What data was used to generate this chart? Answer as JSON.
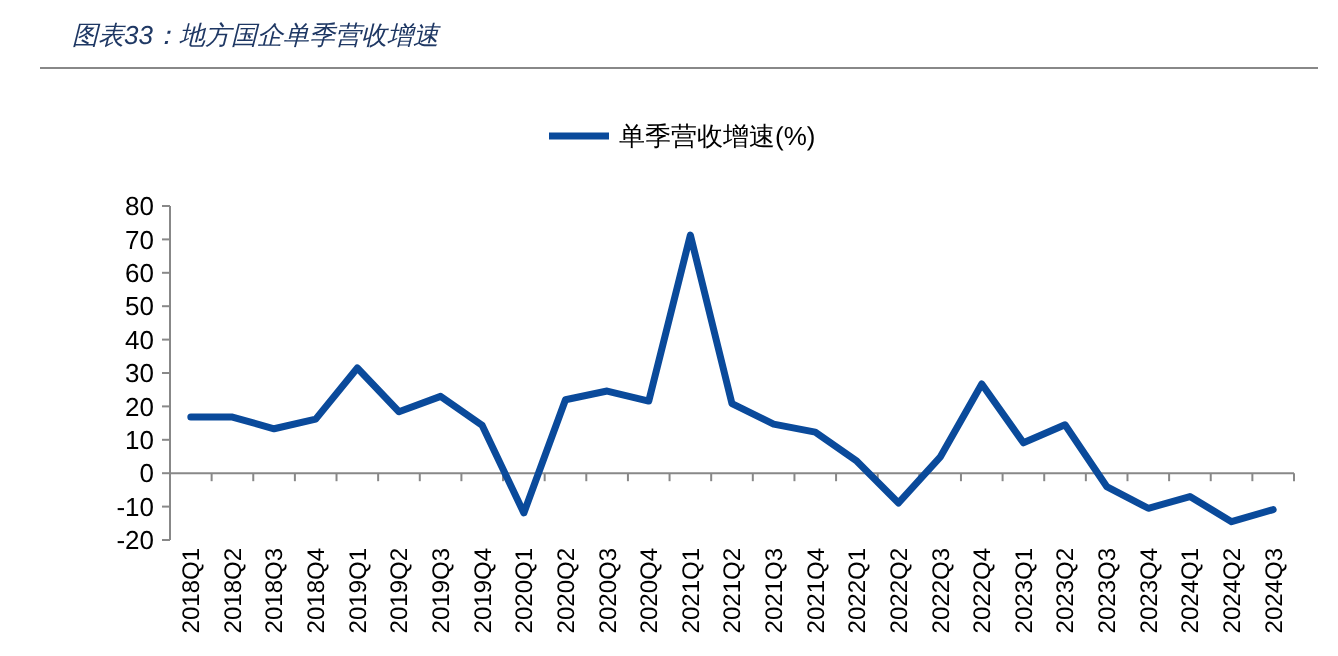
{
  "chart_data": {
    "type": "line",
    "title": "图表33：地方国企单季营收增速",
    "categories": [
      "2018Q1",
      "2018Q2",
      "2018Q3",
      "2018Q4",
      "2019Q1",
      "2019Q2",
      "2019Q3",
      "2019Q4",
      "2020Q1",
      "2020Q2",
      "2020Q3",
      "2020Q4",
      "2021Q1",
      "2021Q2",
      "2021Q3",
      "2021Q4",
      "2022Q1",
      "2022Q2",
      "2022Q3",
      "2022Q4",
      "2023Q1",
      "2023Q2",
      "2023Q3",
      "2023Q4",
      "2024Q1",
      "2024Q2",
      "2024Q3"
    ],
    "series": [
      {
        "name": "单季营收增速(%)",
        "color": "#0a4a9b",
        "values": [
          16.8,
          16.8,
          13.3,
          16.2,
          31.5,
          18.4,
          23,
          14.3,
          -11.9,
          22,
          24.6,
          21.6,
          71.3,
          20.8,
          14.7,
          12.3,
          3.6,
          -8.9,
          4.8,
          26.7,
          9.1,
          14.5,
          -4,
          -10.5,
          -7,
          -14.5,
          -10.9
        ]
      }
    ],
    "ylim": [
      -20,
      80
    ],
    "yticks": [
      -20,
      -10,
      0,
      10,
      20,
      30,
      40,
      50,
      60,
      70,
      80
    ],
    "legend": "top",
    "marker": "none",
    "line_style": "solid"
  }
}
